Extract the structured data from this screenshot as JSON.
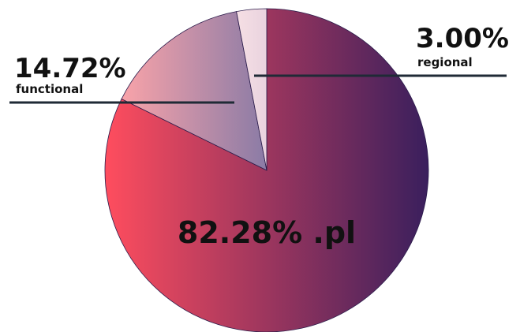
{
  "chart_data": {
    "type": "pie",
    "categories": [
      ".pl",
      "functional",
      "regional"
    ],
    "values": [
      82.28,
      14.72,
      3.0
    ],
    "value_labels": [
      "82.28%",
      "14.72%",
      "3.00%"
    ],
    "colors": [
      [
        "#ff4d5e",
        "#3a1f5d"
      ],
      [
        "#f9a3a9",
        "#8a7ba6"
      ],
      [
        "#f6dfe4",
        "#e9d3df"
      ]
    ],
    "start_angle": 0,
    "direction": "clockwise"
  }
}
